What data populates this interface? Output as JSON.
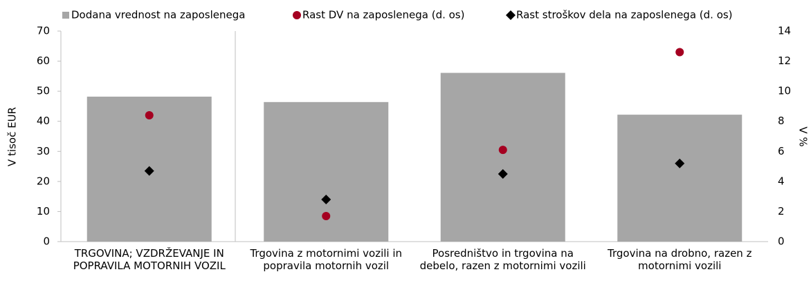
{
  "chart_data": {
    "type": "bar",
    "categories": [
      "TRGOVINA; VZDRŽEVANJE IN POPRAVILA MOTORNIH VOZIL",
      "Trgovina z motornimi vozili in popravila motornih vozil",
      "Posredništvo in trgovina na debelo, razen z motornimi vozili",
      "Trgovina na drobno, razen z motornimi vozili"
    ],
    "series": [
      {
        "name": "Dodana vrednost na zaposlenega",
        "color": "#a6a6a6",
        "values": [
          48.2,
          46.4,
          56.1,
          42.2
        ]
      },
      {
        "name": "Rast DV na zaposlenega (d. os)",
        "color": "#a50021",
        "marker": "circle",
        "axis": "y2",
        "values": [
          8.4,
          1.7,
          6.1,
          12.6
        ]
      },
      {
        "name": "Rast stroškov dela na zaposlenega (d. os)",
        "color": "#000000",
        "marker": "diamond",
        "axis": "y2",
        "values": [
          4.7,
          2.8,
          4.5,
          5.2
        ]
      }
    ],
    "ylabel": "V  tisoč EUR",
    "y2label": "V %",
    "ylim": [
      0,
      70
    ],
    "yticks": [
      0,
      10,
      20,
      30,
      40,
      50,
      60,
      70
    ],
    "y2lim": [
      0,
      14
    ],
    "y2ticks": [
      0,
      2,
      4,
      6,
      8,
      10,
      12,
      14
    ],
    "legend": "top"
  }
}
